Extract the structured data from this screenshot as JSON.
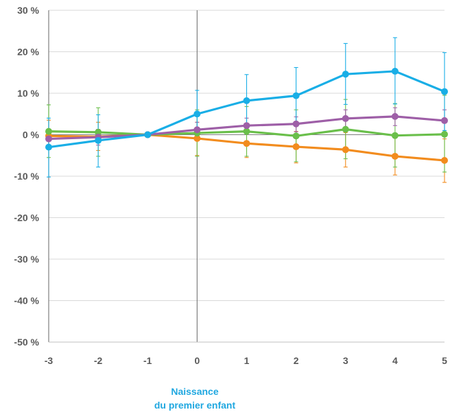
{
  "chart_data": {
    "type": "line",
    "title": "",
    "xlabel_lines": [
      "Naissance",
      "du premier enfant"
    ],
    "ylabel": "",
    "x": [
      -3,
      -2,
      -1,
      0,
      1,
      2,
      3,
      4,
      5
    ],
    "x_tick_labels": [
      "-3",
      "-2",
      "-1",
      "0",
      "1",
      "2",
      "3",
      "4",
      "5"
    ],
    "y_tick_labels": [
      "30 %",
      "20 %",
      "10 %",
      "0 %",
      "-10 %",
      "-20 %",
      "-30 %",
      "-40 %",
      "-50 %"
    ],
    "y_ticks": [
      30,
      20,
      10,
      0,
      -10,
      -20,
      -30,
      -40,
      -50
    ],
    "ylim": [
      -50,
      30
    ],
    "xlim": [
      -3,
      5
    ],
    "grid": true,
    "legend": "none",
    "reference_line_x": 0,
    "series": [
      {
        "color": "#f28c1e",
        "values": [
          -0.3,
          -0.5,
          0,
          -0.9,
          -2.1,
          -2.9,
          -3.6,
          -5.2,
          -6.2
        ],
        "err_low": [
          -3.5,
          -3.8,
          -0.2,
          -5.0,
          -5.5,
          -6.8,
          -7.8,
          -9.7,
          -11.5
        ],
        "err_high": [
          3.5,
          3.0,
          0.3,
          3.0,
          1.5,
          0.8,
          0.5,
          -0.8,
          -1.0
        ]
      },
      {
        "color": "#6abf4b",
        "values": [
          0.8,
          0.6,
          0,
          0.4,
          0.8,
          -0.3,
          1.3,
          -0.2,
          0.1
        ],
        "err_low": [
          -5.5,
          -5.2,
          -0.2,
          -5.2,
          -5.2,
          -6.5,
          -5.8,
          -7.8,
          -9.0
        ],
        "err_high": [
          7.2,
          6.5,
          0.3,
          6.0,
          6.8,
          6.0,
          8.5,
          7.5,
          9.5
        ]
      },
      {
        "color": "#9e5fa7",
        "values": [
          -1.0,
          -0.6,
          0,
          1.2,
          2.2,
          2.6,
          3.9,
          4.4,
          3.4
        ],
        "err_low": [
          -3.0,
          -2.5,
          -0.2,
          -1.0,
          0.3,
          0.7,
          1.3,
          2.2,
          1.0
        ],
        "err_high": [
          1.0,
          1.3,
          0.3,
          3.0,
          4.0,
          4.3,
          6.0,
          6.5,
          6.0
        ]
      },
      {
        "color": "#19aee6",
        "values": [
          -3.0,
          -1.4,
          0,
          5.0,
          8.2,
          9.4,
          14.6,
          15.3,
          10.4
        ],
        "err_low": [
          -10.2,
          -7.8,
          -0.2,
          -0.5,
          2.0,
          2.8,
          7.3,
          7.4,
          1.0
        ],
        "err_high": [
          4.0,
          4.8,
          0.3,
          10.7,
          14.5,
          16.2,
          22.0,
          23.4,
          19.8
        ]
      }
    ]
  }
}
